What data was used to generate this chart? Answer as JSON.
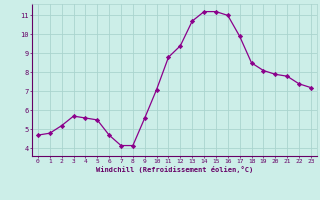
{
  "x": [
    0,
    1,
    2,
    3,
    4,
    5,
    6,
    7,
    8,
    9,
    10,
    11,
    12,
    13,
    14,
    15,
    16,
    17,
    18,
    19,
    20,
    21,
    22,
    23
  ],
  "y": [
    4.7,
    4.8,
    5.2,
    5.7,
    5.6,
    5.5,
    4.7,
    4.15,
    4.15,
    5.6,
    7.1,
    8.8,
    9.4,
    10.7,
    11.2,
    11.2,
    11.0,
    9.9,
    8.5,
    8.1,
    7.9,
    7.8,
    7.4,
    7.2
  ],
  "line_color": "#8b008b",
  "marker": "D",
  "marker_size": 2.2,
  "bg_color": "#cceee8",
  "grid_color": "#aad4ce",
  "xlabel": "Windchill (Refroidissement éolien,°C)",
  "xlabel_color": "#660066",
  "tick_color": "#660066",
  "xlim": [
    -0.5,
    23.5
  ],
  "ylim": [
    3.6,
    11.6
  ],
  "yticks": [
    4,
    5,
    6,
    7,
    8,
    9,
    10,
    11
  ],
  "xticks": [
    0,
    1,
    2,
    3,
    4,
    5,
    6,
    7,
    8,
    9,
    10,
    11,
    12,
    13,
    14,
    15,
    16,
    17,
    18,
    19,
    20,
    21,
    22,
    23
  ],
  "spine_color": "#660066",
  "figsize": [
    3.2,
    2.0
  ],
  "dpi": 100
}
